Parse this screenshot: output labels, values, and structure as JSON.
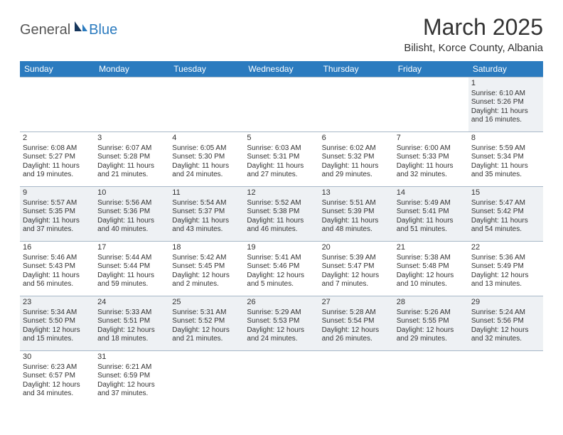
{
  "logo": {
    "part1": "General",
    "part2": "Blue"
  },
  "title": "March 2025",
  "location": "Bilisht, Korce County, Albania",
  "weekdays": [
    "Sunday",
    "Monday",
    "Tuesday",
    "Wednesday",
    "Thursday",
    "Friday",
    "Saturday"
  ],
  "colors": {
    "headerBg": "#2b7bbf",
    "headerFg": "#ffffff",
    "rowAlt": "#eef1f4",
    "border": "#a8b8c8",
    "logoBlue": "#2b7bbf",
    "text": "#333333"
  },
  "weeks": [
    [
      null,
      null,
      null,
      null,
      null,
      null,
      {
        "d": "1",
        "sr": "Sunrise: 6:10 AM",
        "ss": "Sunset: 5:26 PM",
        "dl1": "Daylight: 11 hours",
        "dl2": "and 16 minutes."
      }
    ],
    [
      {
        "d": "2",
        "sr": "Sunrise: 6:08 AM",
        "ss": "Sunset: 5:27 PM",
        "dl1": "Daylight: 11 hours",
        "dl2": "and 19 minutes."
      },
      {
        "d": "3",
        "sr": "Sunrise: 6:07 AM",
        "ss": "Sunset: 5:28 PM",
        "dl1": "Daylight: 11 hours",
        "dl2": "and 21 minutes."
      },
      {
        "d": "4",
        "sr": "Sunrise: 6:05 AM",
        "ss": "Sunset: 5:30 PM",
        "dl1": "Daylight: 11 hours",
        "dl2": "and 24 minutes."
      },
      {
        "d": "5",
        "sr": "Sunrise: 6:03 AM",
        "ss": "Sunset: 5:31 PM",
        "dl1": "Daylight: 11 hours",
        "dl2": "and 27 minutes."
      },
      {
        "d": "6",
        "sr": "Sunrise: 6:02 AM",
        "ss": "Sunset: 5:32 PM",
        "dl1": "Daylight: 11 hours",
        "dl2": "and 29 minutes."
      },
      {
        "d": "7",
        "sr": "Sunrise: 6:00 AM",
        "ss": "Sunset: 5:33 PM",
        "dl1": "Daylight: 11 hours",
        "dl2": "and 32 minutes."
      },
      {
        "d": "8",
        "sr": "Sunrise: 5:59 AM",
        "ss": "Sunset: 5:34 PM",
        "dl1": "Daylight: 11 hours",
        "dl2": "and 35 minutes."
      }
    ],
    [
      {
        "d": "9",
        "sr": "Sunrise: 5:57 AM",
        "ss": "Sunset: 5:35 PM",
        "dl1": "Daylight: 11 hours",
        "dl2": "and 37 minutes."
      },
      {
        "d": "10",
        "sr": "Sunrise: 5:56 AM",
        "ss": "Sunset: 5:36 PM",
        "dl1": "Daylight: 11 hours",
        "dl2": "and 40 minutes."
      },
      {
        "d": "11",
        "sr": "Sunrise: 5:54 AM",
        "ss": "Sunset: 5:37 PM",
        "dl1": "Daylight: 11 hours",
        "dl2": "and 43 minutes."
      },
      {
        "d": "12",
        "sr": "Sunrise: 5:52 AM",
        "ss": "Sunset: 5:38 PM",
        "dl1": "Daylight: 11 hours",
        "dl2": "and 46 minutes."
      },
      {
        "d": "13",
        "sr": "Sunrise: 5:51 AM",
        "ss": "Sunset: 5:39 PM",
        "dl1": "Daylight: 11 hours",
        "dl2": "and 48 minutes."
      },
      {
        "d": "14",
        "sr": "Sunrise: 5:49 AM",
        "ss": "Sunset: 5:41 PM",
        "dl1": "Daylight: 11 hours",
        "dl2": "and 51 minutes."
      },
      {
        "d": "15",
        "sr": "Sunrise: 5:47 AM",
        "ss": "Sunset: 5:42 PM",
        "dl1": "Daylight: 11 hours",
        "dl2": "and 54 minutes."
      }
    ],
    [
      {
        "d": "16",
        "sr": "Sunrise: 5:46 AM",
        "ss": "Sunset: 5:43 PM",
        "dl1": "Daylight: 11 hours",
        "dl2": "and 56 minutes."
      },
      {
        "d": "17",
        "sr": "Sunrise: 5:44 AM",
        "ss": "Sunset: 5:44 PM",
        "dl1": "Daylight: 11 hours",
        "dl2": "and 59 minutes."
      },
      {
        "d": "18",
        "sr": "Sunrise: 5:42 AM",
        "ss": "Sunset: 5:45 PM",
        "dl1": "Daylight: 12 hours",
        "dl2": "and 2 minutes."
      },
      {
        "d": "19",
        "sr": "Sunrise: 5:41 AM",
        "ss": "Sunset: 5:46 PM",
        "dl1": "Daylight: 12 hours",
        "dl2": "and 5 minutes."
      },
      {
        "d": "20",
        "sr": "Sunrise: 5:39 AM",
        "ss": "Sunset: 5:47 PM",
        "dl1": "Daylight: 12 hours",
        "dl2": "and 7 minutes."
      },
      {
        "d": "21",
        "sr": "Sunrise: 5:38 AM",
        "ss": "Sunset: 5:48 PM",
        "dl1": "Daylight: 12 hours",
        "dl2": "and 10 minutes."
      },
      {
        "d": "22",
        "sr": "Sunrise: 5:36 AM",
        "ss": "Sunset: 5:49 PM",
        "dl1": "Daylight: 12 hours",
        "dl2": "and 13 minutes."
      }
    ],
    [
      {
        "d": "23",
        "sr": "Sunrise: 5:34 AM",
        "ss": "Sunset: 5:50 PM",
        "dl1": "Daylight: 12 hours",
        "dl2": "and 15 minutes."
      },
      {
        "d": "24",
        "sr": "Sunrise: 5:33 AM",
        "ss": "Sunset: 5:51 PM",
        "dl1": "Daylight: 12 hours",
        "dl2": "and 18 minutes."
      },
      {
        "d": "25",
        "sr": "Sunrise: 5:31 AM",
        "ss": "Sunset: 5:52 PM",
        "dl1": "Daylight: 12 hours",
        "dl2": "and 21 minutes."
      },
      {
        "d": "26",
        "sr": "Sunrise: 5:29 AM",
        "ss": "Sunset: 5:53 PM",
        "dl1": "Daylight: 12 hours",
        "dl2": "and 24 minutes."
      },
      {
        "d": "27",
        "sr": "Sunrise: 5:28 AM",
        "ss": "Sunset: 5:54 PM",
        "dl1": "Daylight: 12 hours",
        "dl2": "and 26 minutes."
      },
      {
        "d": "28",
        "sr": "Sunrise: 5:26 AM",
        "ss": "Sunset: 5:55 PM",
        "dl1": "Daylight: 12 hours",
        "dl2": "and 29 minutes."
      },
      {
        "d": "29",
        "sr": "Sunrise: 5:24 AM",
        "ss": "Sunset: 5:56 PM",
        "dl1": "Daylight: 12 hours",
        "dl2": "and 32 minutes."
      }
    ],
    [
      {
        "d": "30",
        "sr": "Sunrise: 6:23 AM",
        "ss": "Sunset: 6:57 PM",
        "dl1": "Daylight: 12 hours",
        "dl2": "and 34 minutes."
      },
      {
        "d": "31",
        "sr": "Sunrise: 6:21 AM",
        "ss": "Sunset: 6:59 PM",
        "dl1": "Daylight: 12 hours",
        "dl2": "and 37 minutes."
      },
      null,
      null,
      null,
      null,
      null
    ]
  ]
}
